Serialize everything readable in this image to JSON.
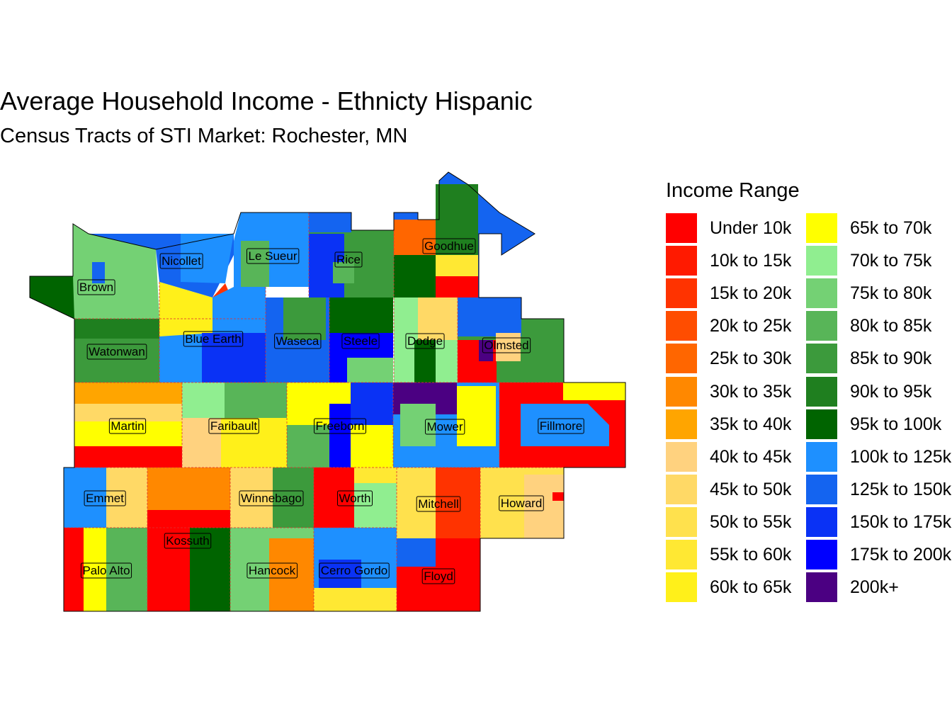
{
  "title": "Average Household Income - Ethnicty Hispanic",
  "subtitle": "Census Tracts of STI Market: Rochester, MN",
  "legend": {
    "title": "Income Range",
    "items": [
      {
        "label": "Under 10k",
        "color": "#FF0000"
      },
      {
        "label": "10k to 15k",
        "color": "#FF1A00"
      },
      {
        "label": "15k to 20k",
        "color": "#FF3300"
      },
      {
        "label": "20k to 25k",
        "color": "#FF4D00"
      },
      {
        "label": "25k to 30k",
        "color": "#FF6600"
      },
      {
        "label": "30k to 35k",
        "color": "#FF8800"
      },
      {
        "label": "35k to 40k",
        "color": "#FFA500"
      },
      {
        "label": "40k to 45k",
        "color": "#FFD27F"
      },
      {
        "label": "45k to 50k",
        "color": "#FFD966"
      },
      {
        "label": "50k to 55k",
        "color": "#FFE14D"
      },
      {
        "label": "55k to 60k",
        "color": "#FFE833"
      },
      {
        "label": "60k to 65k",
        "color": "#FFF01A"
      },
      {
        "label": "65k to 70k",
        "color": "#FFFF00"
      },
      {
        "label": "70k to 75k",
        "color": "#90EE90"
      },
      {
        "label": "75k to 80k",
        "color": "#74D174"
      },
      {
        "label": "80k to 85k",
        "color": "#58B558"
      },
      {
        "label": "85k to 90k",
        "color": "#3C9A3C"
      },
      {
        "label": "90k to 95k",
        "color": "#1F7F1F"
      },
      {
        "label": "95k to 100k",
        "color": "#006400"
      },
      {
        "label": "100k to 125k",
        "color": "#1E90FF"
      },
      {
        "label": "125k to 150k",
        "color": "#1464F0"
      },
      {
        "label": "150k to 175k",
        "color": "#0A32F5"
      },
      {
        "label": "175k to 200k",
        "color": "#0000FF"
      },
      {
        "label": "200k+",
        "color": "#4B0082"
      }
    ]
  },
  "counties": [
    {
      "name": "Brown"
    },
    {
      "name": "Nicollet"
    },
    {
      "name": "Le Sueur"
    },
    {
      "name": "Rice"
    },
    {
      "name": "Goodhue"
    },
    {
      "name": "Watonwan"
    },
    {
      "name": "Blue Earth"
    },
    {
      "name": "Waseca"
    },
    {
      "name": "Steele"
    },
    {
      "name": "Dodge"
    },
    {
      "name": "Olmsted"
    },
    {
      "name": "Martin"
    },
    {
      "name": "Faribault"
    },
    {
      "name": "Freeborn"
    },
    {
      "name": "Mower"
    },
    {
      "name": "Fillmore"
    },
    {
      "name": "Emmet"
    },
    {
      "name": "Winnebago"
    },
    {
      "name": "Worth"
    },
    {
      "name": "Mitchell"
    },
    {
      "name": "Howard"
    },
    {
      "name": "Kossuth"
    },
    {
      "name": "Palo Alto"
    },
    {
      "name": "Hancock"
    },
    {
      "name": "Cerro Gordo"
    },
    {
      "name": "Floyd"
    }
  ]
}
